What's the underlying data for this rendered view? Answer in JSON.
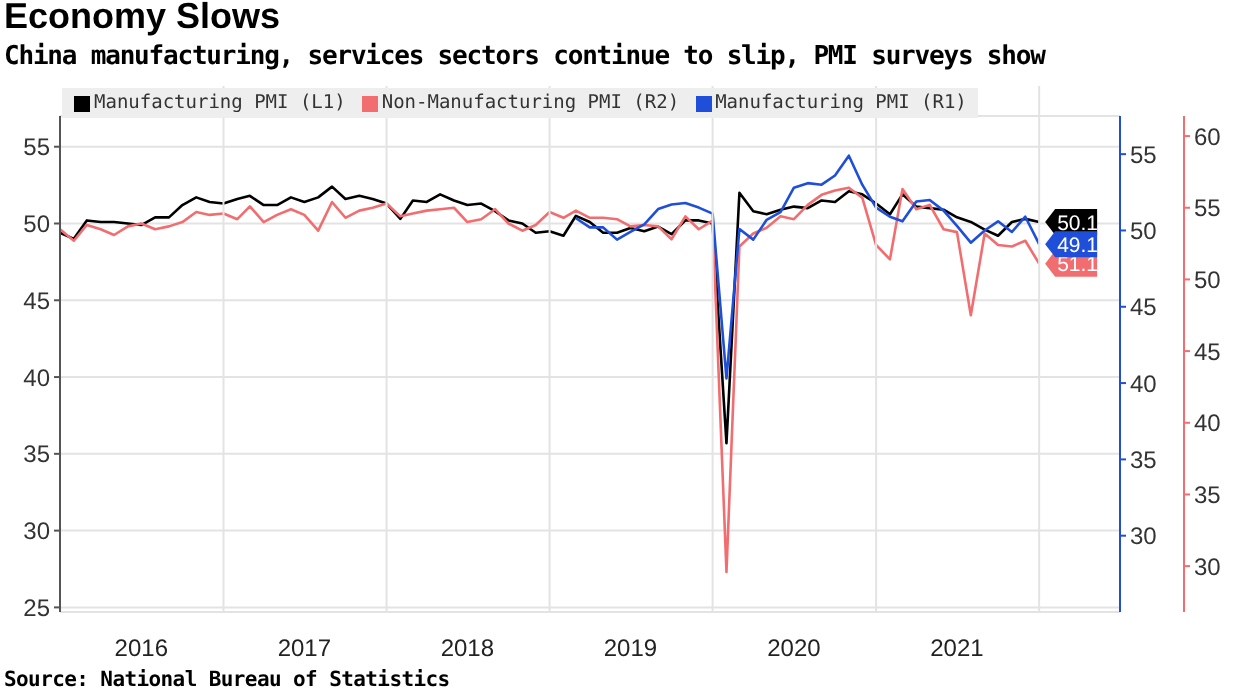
{
  "chart_data": {
    "type": "line",
    "title": "Economy Slows",
    "subtitle": "China manufacturing, services sectors continue to slip, PMI surveys show",
    "annotations": [
      "Source: National Bureau of Statistics"
    ],
    "x": [
      "2016-01",
      "2016-02",
      "2016-03",
      "2016-04",
      "2016-05",
      "2016-06",
      "2016-07",
      "2016-08",
      "2016-09",
      "2016-10",
      "2016-11",
      "2016-12",
      "2017-01",
      "2017-02",
      "2017-03",
      "2017-04",
      "2017-05",
      "2017-06",
      "2017-07",
      "2017-08",
      "2017-09",
      "2017-10",
      "2017-11",
      "2017-12",
      "2018-01",
      "2018-02",
      "2018-03",
      "2018-04",
      "2018-05",
      "2018-06",
      "2018-07",
      "2018-08",
      "2018-09",
      "2018-10",
      "2018-11",
      "2018-12",
      "2019-01",
      "2019-02",
      "2019-03",
      "2019-04",
      "2019-05",
      "2019-06",
      "2019-07",
      "2019-08",
      "2019-09",
      "2019-10",
      "2019-11",
      "2019-12",
      "2020-01",
      "2020-02",
      "2020-03",
      "2020-04",
      "2020-05",
      "2020-06",
      "2020-07",
      "2020-08",
      "2020-09",
      "2020-10",
      "2020-11",
      "2020-12",
      "2021-01",
      "2021-02",
      "2021-03",
      "2021-04",
      "2021-05",
      "2021-06",
      "2021-07",
      "2021-08",
      "2021-09",
      "2021-10",
      "2021-11",
      "2021-12",
      "2022-01"
    ],
    "series": [
      {
        "name": "Manufacturing PMI (L1)",
        "color": "#000000",
        "axis": "y",
        "values": [
          49.4,
          49.0,
          50.2,
          50.1,
          50.1,
          50.0,
          49.9,
          50.4,
          50.4,
          51.2,
          51.7,
          51.4,
          51.3,
          51.6,
          51.8,
          51.2,
          51.2,
          51.7,
          51.4,
          51.7,
          52.4,
          51.6,
          51.8,
          51.6,
          51.3,
          50.3,
          51.5,
          51.4,
          51.9,
          51.5,
          51.2,
          51.3,
          50.8,
          50.2,
          50.0,
          49.4,
          49.5,
          49.2,
          50.5,
          50.1,
          49.4,
          49.4,
          49.7,
          49.5,
          49.8,
          49.3,
          50.2,
          50.2,
          50.0,
          35.7,
          52.0,
          50.8,
          50.6,
          50.9,
          51.1,
          51.0,
          51.5,
          51.4,
          52.1,
          51.9,
          51.3,
          50.6,
          51.9,
          51.1,
          51.0,
          50.9,
          50.4,
          50.1,
          49.6,
          49.2,
          50.1,
          50.3,
          50.1
        ],
        "value_labels": [
          null,
          null,
          null,
          null,
          null,
          null,
          null,
          null,
          null,
          null,
          null,
          null,
          null,
          null,
          null,
          null,
          null,
          null,
          null,
          null,
          null,
          null,
          null,
          null,
          null,
          null,
          null,
          null,
          null,
          null,
          null,
          null,
          null,
          null,
          null,
          null,
          null,
          null,
          null,
          null,
          null,
          null,
          null,
          null,
          null,
          null,
          null,
          null,
          null,
          null,
          null,
          null,
          null,
          null,
          null,
          null,
          null,
          null,
          null,
          null,
          null,
          null,
          null,
          null,
          null,
          null,
          null,
          null,
          null,
          null,
          null,
          null,
          "50.1"
        ]
      },
      {
        "name": "Non-Manufacturing PMI (R2)",
        "color": "#f26d70",
        "axis": "y3",
        "values": [
          53.5,
          52.7,
          53.8,
          53.5,
          53.1,
          53.7,
          53.9,
          53.5,
          53.7,
          54.0,
          54.7,
          54.5,
          54.6,
          54.2,
          55.1,
          54.0,
          54.5,
          54.9,
          54.5,
          53.4,
          55.4,
          54.3,
          54.8,
          55.0,
          55.3,
          54.4,
          54.6,
          54.8,
          54.9,
          55.0,
          54.0,
          54.2,
          54.9,
          53.9,
          53.4,
          53.8,
          54.7,
          54.3,
          54.8,
          54.3,
          54.3,
          54.2,
          53.7,
          53.8,
          53.7,
          52.8,
          54.4,
          53.5,
          54.1,
          29.6,
          52.3,
          53.2,
          53.6,
          54.4,
          54.2,
          55.2,
          55.9,
          56.2,
          56.4,
          55.7,
          52.4,
          51.4,
          56.3,
          54.9,
          55.2,
          53.5,
          53.3,
          47.5,
          53.2,
          52.4,
          52.3,
          52.7,
          51.1
        ],
        "value_labels": [
          null,
          null,
          null,
          null,
          null,
          null,
          null,
          null,
          null,
          null,
          null,
          null,
          null,
          null,
          null,
          null,
          null,
          null,
          null,
          null,
          null,
          null,
          null,
          null,
          null,
          null,
          null,
          null,
          null,
          null,
          null,
          null,
          null,
          null,
          null,
          null,
          null,
          null,
          null,
          null,
          null,
          null,
          null,
          null,
          null,
          null,
          null,
          null,
          null,
          null,
          null,
          null,
          null,
          null,
          null,
          null,
          null,
          null,
          null,
          null,
          null,
          null,
          null,
          null,
          null,
          null,
          null,
          null,
          null,
          null,
          null,
          null,
          "51.1"
        ]
      },
      {
        "name": "Manufacturing PMI (R1)",
        "color": "#1f4fd8",
        "axis": "y2",
        "values": [
          null,
          null,
          null,
          null,
          null,
          null,
          null,
          null,
          null,
          null,
          null,
          null,
          null,
          null,
          null,
          null,
          null,
          null,
          null,
          null,
          null,
          null,
          null,
          null,
          null,
          null,
          null,
          null,
          null,
          null,
          null,
          null,
          null,
          null,
          null,
          null,
          null,
          null,
          50.8,
          50.2,
          50.2,
          49.4,
          49.9,
          50.4,
          51.4,
          51.7,
          51.8,
          51.5,
          51.1,
          40.3,
          50.1,
          49.4,
          50.7,
          51.2,
          52.8,
          53.1,
          53.0,
          53.6,
          54.9,
          53.0,
          51.5,
          50.9,
          50.6,
          51.9,
          52.0,
          51.3,
          50.3,
          49.2,
          50.0,
          50.6,
          49.9,
          50.9,
          49.1
        ],
        "value_labels": [
          null,
          null,
          null,
          null,
          null,
          null,
          null,
          null,
          null,
          null,
          null,
          null,
          null,
          null,
          null,
          null,
          null,
          null,
          null,
          null,
          null,
          null,
          null,
          null,
          null,
          null,
          null,
          null,
          null,
          null,
          null,
          null,
          null,
          null,
          null,
          null,
          null,
          null,
          null,
          null,
          null,
          null,
          null,
          null,
          null,
          null,
          null,
          null,
          null,
          null,
          null,
          null,
          null,
          null,
          null,
          null,
          null,
          null,
          null,
          null,
          null,
          null,
          null,
          null,
          null,
          null,
          null,
          null,
          null,
          null,
          null,
          null,
          "49.1"
        ]
      }
    ],
    "xlim": [
      "2016-01",
      "2022-07"
    ],
    "xticks": [
      {
        "value": "2016-07",
        "label": "2016"
      },
      {
        "value": "2017-01",
        "label": null
      },
      {
        "value": "2017-07",
        "label": "2017"
      },
      {
        "value": "2018-01",
        "label": null
      },
      {
        "value": "2018-07",
        "label": "2018"
      },
      {
        "value": "2019-01",
        "label": null
      },
      {
        "value": "2019-07",
        "label": "2019"
      },
      {
        "value": "2020-01",
        "label": null
      },
      {
        "value": "2020-07",
        "label": "2020"
      },
      {
        "value": "2021-01",
        "label": null
      },
      {
        "value": "2021-07",
        "label": "2021"
      },
      {
        "value": "2022-01",
        "label": null
      }
    ],
    "ylim": [
      24.7,
      57
    ],
    "yticks": [
      25,
      30,
      35,
      40,
      45,
      50,
      55
    ],
    "y2lim": [
      25,
      57.5
    ],
    "y2ticks": [
      30,
      35,
      40,
      45,
      50,
      55
    ],
    "y3lim": [
      26.8,
      61.4
    ],
    "y3ticks": [
      30,
      35,
      40,
      45,
      50,
      55,
      60
    ],
    "grid": true,
    "legend": "top left",
    "marker": "none",
    "line_style": "solid"
  }
}
